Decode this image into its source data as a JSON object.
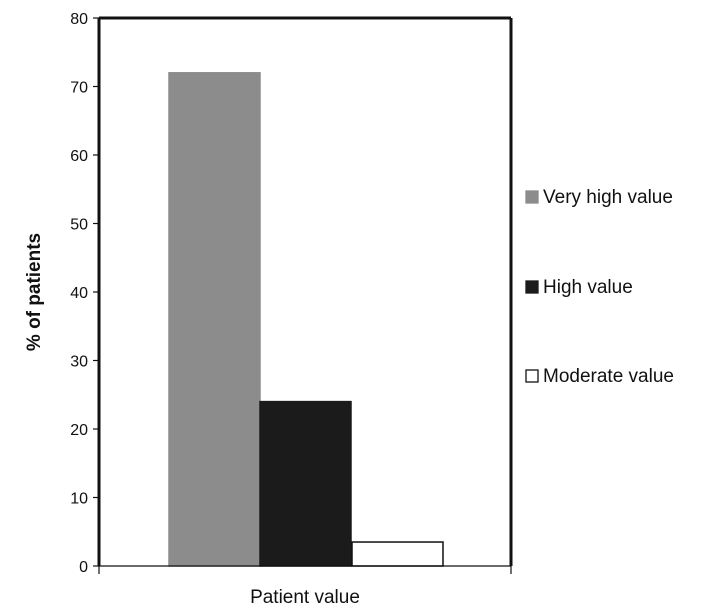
{
  "chart_data": {
    "type": "bar",
    "xlabel": "Patient value",
    "ylabel": "% of patients",
    "ylim": [
      0,
      80
    ],
    "yticks": [
      0,
      10,
      20,
      30,
      40,
      50,
      60,
      70,
      80
    ],
    "grid": false,
    "legend_position": "right",
    "series": [
      {
        "name": "Very high value",
        "value": 72,
        "color": "#8c8c8c",
        "stroke": "#8c8c8c"
      },
      {
        "name": "High value",
        "value": 24,
        "color": "#1b1b1b",
        "stroke": "#1b1b1b"
      },
      {
        "name": "Moderate value",
        "value": 3.5,
        "color": "#ffffff",
        "stroke": "#111111"
      }
    ]
  }
}
